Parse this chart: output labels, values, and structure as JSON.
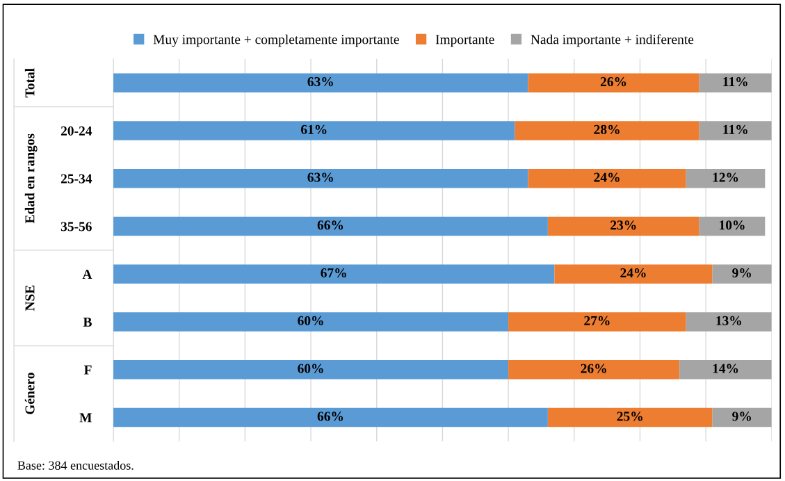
{
  "chart_data": {
    "type": "bar",
    "orientation": "horizontal",
    "stacked": true,
    "categories": [
      null,
      "20-24",
      "25-34",
      "35-56",
      "A",
      "B",
      "F",
      "M"
    ],
    "series": [
      {
        "name": "Muy importante + completamente importante",
        "color": "#5b9bd5",
        "values": [
          63,
          61,
          63,
          66,
          67,
          60,
          60,
          66
        ],
        "value_labels": [
          "63%",
          "61%",
          "63%",
          "66%",
          "67%",
          "60%",
          "60%",
          "66%"
        ]
      },
      {
        "name": "Importante",
        "color": "#ed7d31",
        "values": [
          26,
          28,
          24,
          23,
          24,
          27,
          26,
          25
        ],
        "value_labels": [
          "26%",
          "28%",
          "24%",
          "23%",
          "24%",
          "27%",
          "26%",
          "25%"
        ]
      },
      {
        "name": "Nada importante + indiferente",
        "color": "#a5a5a5",
        "values": [
          11,
          11,
          12,
          10,
          9,
          13,
          14,
          9
        ],
        "value_labels": [
          "11%",
          "11%",
          "12%",
          "10%",
          "9%",
          "13%",
          "14%",
          "9%"
        ]
      }
    ],
    "tick_labels": "y",
    "grid": "x",
    "legend": "top",
    "annotations": [
      "Total",
      "Edad en rangos",
      "NSE",
      "Género",
      "Base: 384 encuestados."
    ]
  }
}
